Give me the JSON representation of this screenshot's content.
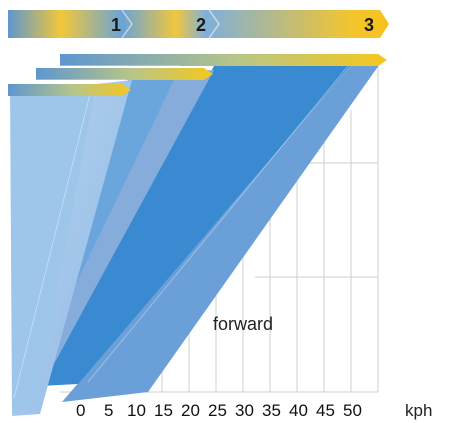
{
  "stages": [
    "1",
    "2",
    "3"
  ],
  "speed_axis": {
    "ticks": [
      "0",
      "5",
      "10",
      "15",
      "20",
      "25",
      "30",
      "35",
      "40",
      "45",
      "50"
    ],
    "unit": "kph"
  },
  "region_label": "forward",
  "colors": {
    "bar_start": "#5f97cf",
    "bar_end": "#f4cb2e",
    "deep_blue": "#3a8ad1",
    "mid_blue": "#6aa6dc",
    "pale_blue": "#a9c9ec",
    "arrow_yellow": "#f6c71c"
  }
}
